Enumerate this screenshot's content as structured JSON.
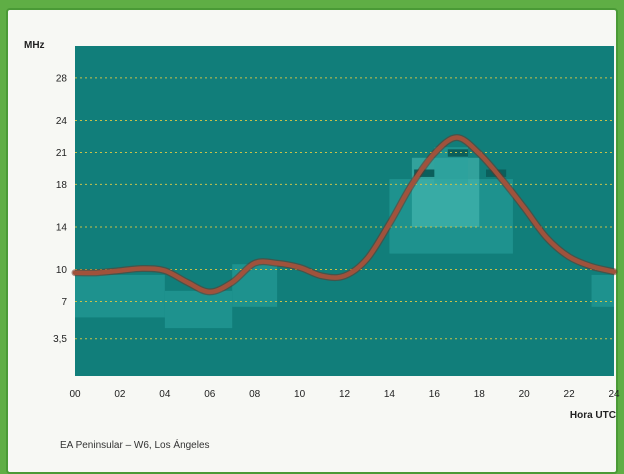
{
  "chart_data": {
    "type": "line",
    "ylabel": "MHz",
    "xlabel": "Hora UTC",
    "caption": "EA Peninsular – W6, Los Ángeles",
    "x_ticks": [
      "00",
      "02",
      "04",
      "06",
      "08",
      "10",
      "12",
      "14",
      "16",
      "18",
      "20",
      "22",
      "24"
    ],
    "y_ticks": [
      {
        "label": "3,5",
        "value": 3.5
      },
      {
        "label": "7",
        "value": 7
      },
      {
        "label": "10",
        "value": 10
      },
      {
        "label": "14",
        "value": 14
      },
      {
        "label": "18",
        "value": 18
      },
      {
        "label": "21",
        "value": 21
      },
      {
        "label": "24",
        "value": 24
      },
      {
        "label": "28",
        "value": 28
      }
    ],
    "xlim": [
      0,
      24
    ],
    "ylim": [
      0,
      31
    ],
    "grid": true,
    "series": [
      {
        "color": "#a0523c",
        "x": [
          0,
          1,
          2,
          3,
          4,
          5,
          6,
          7,
          8,
          9,
          10,
          11,
          12,
          13,
          14,
          15,
          16,
          17,
          18,
          19,
          20,
          21,
          22,
          23,
          24
        ],
        "y": [
          9.7,
          9.7,
          9.9,
          10.1,
          9.9,
          8.8,
          7.9,
          8.8,
          10.6,
          10.6,
          10.2,
          9.4,
          9.4,
          11.0,
          14.3,
          18.0,
          20.9,
          22.4,
          20.9,
          18.5,
          15.8,
          13.0,
          11.2,
          10.3,
          9.8
        ]
      }
    ],
    "colors": {
      "plot_bg": "#117e7a",
      "grid": "#c8c24a",
      "band": "#2aa39e",
      "band_light": "#4fc0b8",
      "band_dark": "#0b5f5c"
    }
  }
}
